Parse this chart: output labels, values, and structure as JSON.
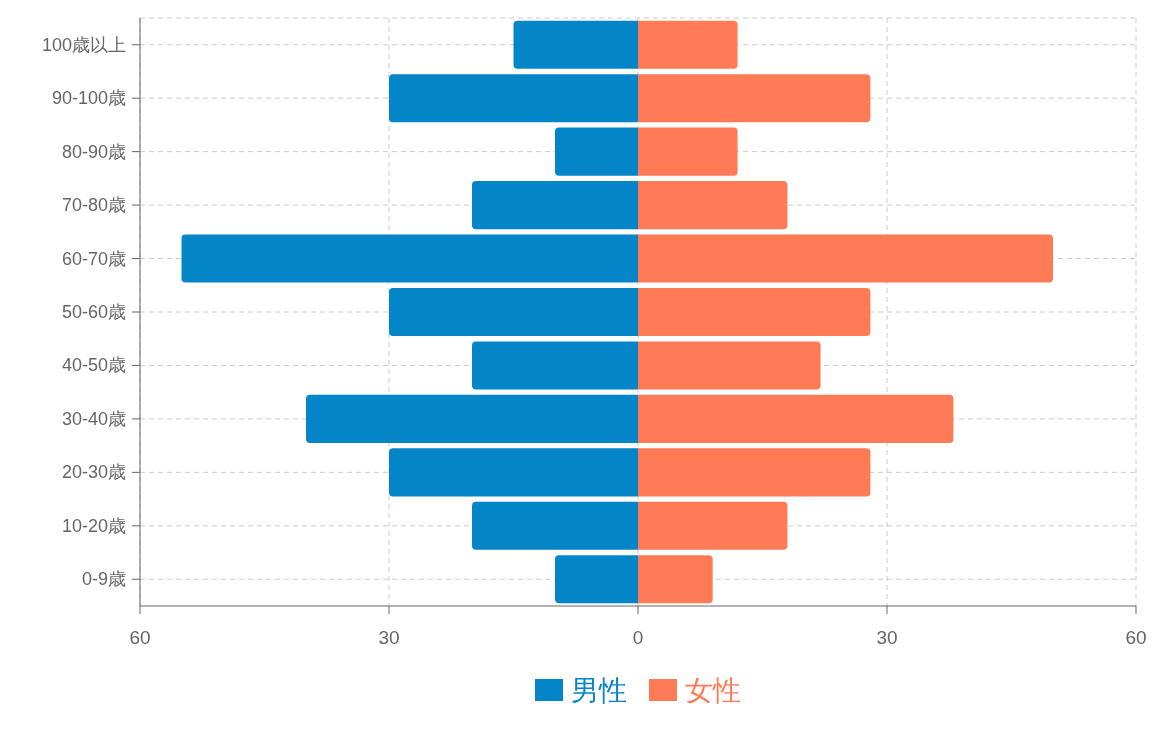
{
  "chart_data": {
    "type": "bar",
    "orientation": "horizontal",
    "categories": [
      "100歳以上",
      "90-100歳",
      "80-90歳",
      "70-80歳",
      "60-70歳",
      "50-60歳",
      "40-50歳",
      "30-40歳",
      "20-30歳",
      "10-20歳",
      "0-9歳"
    ],
    "series": [
      {
        "name": "男性",
        "color": "#0485c8",
        "values": [
          -15,
          -30,
          -10,
          -20,
          -55,
          -30,
          -20,
          -40,
          -30,
          -20,
          -10
        ]
      },
      {
        "name": "女性",
        "color": "#ff7b56",
        "values": [
          12,
          28,
          12,
          18,
          50,
          28,
          22,
          38,
          28,
          18,
          9
        ]
      }
    ],
    "xlim": [
      -60,
      60
    ],
    "xticks": [
      {
        "value": -60,
        "label": "60"
      },
      {
        "value": -30,
        "label": "30"
      },
      0,
      30,
      60
    ],
    "stacked": true,
    "grid": true,
    "legend": "bottom"
  }
}
